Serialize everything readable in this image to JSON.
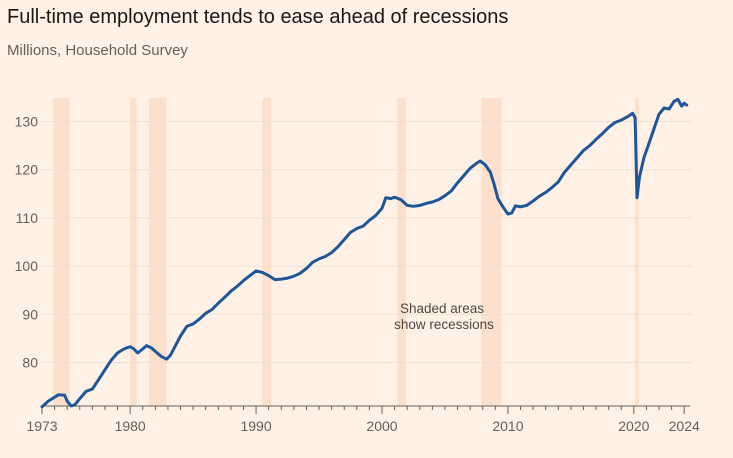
{
  "header": {
    "title": "Full-time employment tends to ease ahead of recessions",
    "subtitle": "Millions, Household Survey"
  },
  "colors": {
    "background": "#fff1e5",
    "line": "#1f5699",
    "recession_band": "#fde0cc",
    "gridline": "#f0dfd2",
    "axis": "#66605c"
  },
  "annotation": {
    "line1": "Shaded areas",
    "line2": "show recessions"
  },
  "chart_data": {
    "type": "line",
    "title": "Full-time employment tends to ease ahead of recessions",
    "subtitle": "Millions, Household Survey",
    "xlabel": "",
    "ylabel": "",
    "xlim": [
      1973,
      2024.3
    ],
    "ylim": [
      70,
      136
    ],
    "grid": true,
    "x_ticks": [
      1973,
      1980,
      1990,
      2000,
      2010,
      2020,
      2024
    ],
    "x_tick_labels": [
      "1973",
      "1980",
      "1990",
      "2000",
      "2010",
      "2020",
      "2024"
    ],
    "y_ticks": [
      80,
      90,
      100,
      110,
      120,
      130
    ],
    "y_tick_labels": [
      "80",
      "90",
      "100",
      "110",
      "120",
      "130"
    ],
    "recessions": [
      [
        1973.9,
        1975.2
      ],
      [
        1980.0,
        1980.5
      ],
      [
        1981.5,
        1982.9
      ],
      [
        1990.5,
        1991.2
      ],
      [
        2001.2,
        2001.9
      ],
      [
        2007.9,
        2009.5
      ],
      [
        2020.1,
        2020.4
      ]
    ],
    "series": [
      {
        "values": [
          [
            1973.0,
            70.8
          ],
          [
            1973.5,
            72.0
          ],
          [
            1974.0,
            72.8
          ],
          [
            1974.3,
            73.3
          ],
          [
            1974.8,
            73.2
          ],
          [
            1975.0,
            72.0
          ],
          [
            1975.3,
            71.0
          ],
          [
            1975.6,
            71.2
          ],
          [
            1976.0,
            72.5
          ],
          [
            1976.5,
            74.0
          ],
          [
            1977.0,
            74.5
          ],
          [
            1977.5,
            76.5
          ],
          [
            1978.0,
            78.5
          ],
          [
            1978.5,
            80.5
          ],
          [
            1979.0,
            82.0
          ],
          [
            1979.5,
            82.8
          ],
          [
            1980.0,
            83.3
          ],
          [
            1980.3,
            82.8
          ],
          [
            1980.6,
            82.0
          ],
          [
            1981.0,
            82.8
          ],
          [
            1981.3,
            83.5
          ],
          [
            1981.7,
            83.0
          ],
          [
            1982.0,
            82.3
          ],
          [
            1982.5,
            81.2
          ],
          [
            1982.9,
            80.7
          ],
          [
            1983.2,
            81.5
          ],
          [
            1983.6,
            83.5
          ],
          [
            1984.0,
            85.5
          ],
          [
            1984.5,
            87.5
          ],
          [
            1985.0,
            88.0
          ],
          [
            1985.5,
            89.0
          ],
          [
            1986.0,
            90.2
          ],
          [
            1986.5,
            91.0
          ],
          [
            1987.0,
            92.3
          ],
          [
            1987.5,
            93.5
          ],
          [
            1988.0,
            94.8
          ],
          [
            1988.5,
            95.8
          ],
          [
            1989.0,
            97.0
          ],
          [
            1989.5,
            98.0
          ],
          [
            1990.0,
            99.0
          ],
          [
            1990.5,
            98.7
          ],
          [
            1991.0,
            98.0
          ],
          [
            1991.5,
            97.2
          ],
          [
            1992.0,
            97.3
          ],
          [
            1992.5,
            97.5
          ],
          [
            1993.0,
            97.9
          ],
          [
            1993.5,
            98.5
          ],
          [
            1994.0,
            99.5
          ],
          [
            1994.5,
            100.8
          ],
          [
            1995.0,
            101.5
          ],
          [
            1995.5,
            102.0
          ],
          [
            1996.0,
            102.8
          ],
          [
            1996.5,
            104.0
          ],
          [
            1997.0,
            105.5
          ],
          [
            1997.5,
            107.0
          ],
          [
            1998.0,
            107.8
          ],
          [
            1998.5,
            108.3
          ],
          [
            1999.0,
            109.5
          ],
          [
            1999.5,
            110.5
          ],
          [
            2000.0,
            112.0
          ],
          [
            2000.3,
            114.2
          ],
          [
            2000.7,
            114.0
          ],
          [
            2001.0,
            114.3
          ],
          [
            2001.5,
            113.8
          ],
          [
            2002.0,
            112.6
          ],
          [
            2002.5,
            112.4
          ],
          [
            2003.0,
            112.6
          ],
          [
            2003.5,
            113.0
          ],
          [
            2004.0,
            113.3
          ],
          [
            2004.5,
            113.8
          ],
          [
            2005.0,
            114.6
          ],
          [
            2005.5,
            115.6
          ],
          [
            2006.0,
            117.3
          ],
          [
            2006.5,
            118.8
          ],
          [
            2007.0,
            120.3
          ],
          [
            2007.5,
            121.3
          ],
          [
            2007.8,
            121.8
          ],
          [
            2008.2,
            121.0
          ],
          [
            2008.6,
            119.5
          ],
          [
            2008.9,
            117.0
          ],
          [
            2009.2,
            114.0
          ],
          [
            2009.6,
            112.3
          ],
          [
            2010.0,
            110.8
          ],
          [
            2010.3,
            111.0
          ],
          [
            2010.6,
            112.5
          ],
          [
            2011.0,
            112.3
          ],
          [
            2011.5,
            112.6
          ],
          [
            2012.0,
            113.5
          ],
          [
            2012.5,
            114.5
          ],
          [
            2013.0,
            115.3
          ],
          [
            2013.5,
            116.3
          ],
          [
            2014.0,
            117.5
          ],
          [
            2014.5,
            119.5
          ],
          [
            2015.0,
            121.0
          ],
          [
            2015.5,
            122.5
          ],
          [
            2016.0,
            124.0
          ],
          [
            2016.5,
            125.0
          ],
          [
            2017.0,
            126.3
          ],
          [
            2017.5,
            127.5
          ],
          [
            2018.0,
            128.8
          ],
          [
            2018.5,
            129.8
          ],
          [
            2019.0,
            130.3
          ],
          [
            2019.5,
            131.0
          ],
          [
            2019.9,
            131.7
          ],
          [
            2020.1,
            130.8
          ],
          [
            2020.25,
            114.2
          ],
          [
            2020.45,
            118.5
          ],
          [
            2020.8,
            122.5
          ],
          [
            2021.2,
            125.5
          ],
          [
            2021.6,
            128.5
          ],
          [
            2022.0,
            131.5
          ],
          [
            2022.4,
            132.8
          ],
          [
            2022.8,
            132.6
          ],
          [
            2023.2,
            134.2
          ],
          [
            2023.5,
            134.6
          ],
          [
            2023.8,
            133.2
          ],
          [
            2024.0,
            133.8
          ],
          [
            2024.2,
            133.4
          ]
        ]
      }
    ]
  }
}
